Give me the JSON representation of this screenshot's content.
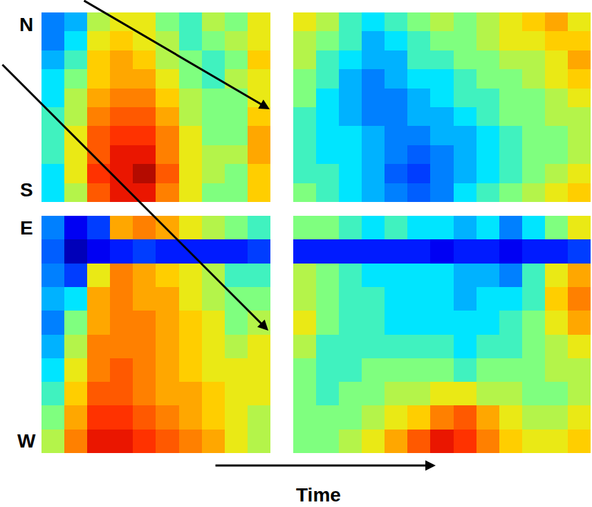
{
  "chart_data": [
    {
      "type": "heatmap",
      "top_label": "N",
      "bottom_label": "S",
      "tick_labels": false,
      "zlim": [
        0,
        1
      ],
      "z": [
        [
          0.3,
          0.35,
          0.55,
          0.6,
          0.6,
          0.5,
          0.45,
          0.55,
          0.5,
          0.6,
          null,
          0.6,
          0.55,
          0.45,
          0.4,
          0.45,
          0.5,
          0.55,
          0.5,
          0.55,
          0.6,
          0.65,
          0.7,
          0.6
        ],
        [
          0.3,
          0.4,
          0.6,
          0.65,
          0.6,
          0.55,
          0.45,
          0.5,
          0.55,
          0.6,
          null,
          0.55,
          0.5,
          0.45,
          0.35,
          0.4,
          0.45,
          0.5,
          0.5,
          0.55,
          0.6,
          0.6,
          0.65,
          0.65
        ],
        [
          0.35,
          0.45,
          0.65,
          0.7,
          0.65,
          0.55,
          0.5,
          0.45,
          0.5,
          0.65,
          null,
          0.55,
          0.45,
          0.4,
          0.35,
          0.35,
          0.45,
          0.45,
          0.5,
          0.5,
          0.55,
          0.55,
          0.6,
          0.7
        ],
        [
          0.4,
          0.5,
          0.65,
          0.7,
          0.7,
          0.6,
          0.5,
          0.45,
          0.55,
          0.6,
          null,
          0.5,
          0.45,
          0.35,
          0.3,
          0.35,
          0.4,
          0.4,
          0.45,
          0.5,
          0.5,
          0.55,
          0.6,
          0.65
        ],
        [
          0.4,
          0.55,
          0.7,
          0.75,
          0.75,
          0.65,
          0.55,
          0.5,
          0.5,
          0.6,
          null,
          0.5,
          0.4,
          0.35,
          0.3,
          0.3,
          0.35,
          0.4,
          0.45,
          0.45,
          0.5,
          0.5,
          0.55,
          0.6
        ],
        [
          0.45,
          0.55,
          0.75,
          0.8,
          0.8,
          0.7,
          0.55,
          0.5,
          0.5,
          0.65,
          null,
          0.45,
          0.4,
          0.35,
          0.3,
          0.3,
          0.35,
          0.35,
          0.4,
          0.45,
          0.5,
          0.5,
          0.55,
          0.55
        ],
        [
          0.45,
          0.6,
          0.8,
          0.85,
          0.85,
          0.75,
          0.6,
          0.5,
          0.5,
          0.7,
          null,
          0.45,
          0.4,
          0.4,
          0.35,
          0.3,
          0.3,
          0.35,
          0.35,
          0.4,
          0.45,
          0.5,
          0.5,
          0.55
        ],
        [
          0.45,
          0.6,
          0.8,
          0.9,
          0.9,
          0.75,
          0.6,
          0.55,
          0.55,
          0.7,
          null,
          0.45,
          0.4,
          0.4,
          0.35,
          0.3,
          0.25,
          0.3,
          0.35,
          0.4,
          0.45,
          0.5,
          0.5,
          0.55
        ],
        [
          0.4,
          0.6,
          0.85,
          0.9,
          0.95,
          0.8,
          0.6,
          0.55,
          0.5,
          0.65,
          null,
          0.45,
          0.45,
          0.4,
          0.35,
          0.25,
          0.2,
          0.3,
          0.35,
          0.4,
          0.45,
          0.5,
          0.55,
          0.6
        ],
        [
          0.4,
          0.55,
          0.8,
          0.9,
          0.9,
          0.75,
          0.6,
          0.5,
          0.5,
          0.65,
          null,
          0.5,
          0.45,
          0.4,
          0.35,
          0.3,
          0.25,
          0.3,
          0.4,
          0.45,
          0.5,
          0.55,
          0.6,
          0.65
        ]
      ]
    },
    {
      "type": "heatmap",
      "top_label": "E",
      "bottom_label": "W",
      "xlabel": "Time",
      "tick_labels": false,
      "zlim": [
        0,
        1
      ],
      "z": [
        [
          0.3,
          0.1,
          0.2,
          0.7,
          0.75,
          0.7,
          0.6,
          0.55,
          0.5,
          0.45,
          null,
          0.5,
          0.5,
          0.45,
          0.4,
          0.45,
          0.4,
          0.4,
          0.35,
          0.4,
          0.3,
          0.4,
          0.5,
          0.6
        ],
        [
          0.25,
          0.05,
          0.1,
          0.15,
          0.2,
          0.15,
          0.15,
          0.15,
          0.15,
          0.2,
          null,
          0.15,
          0.15,
          0.15,
          0.15,
          0.15,
          0.15,
          0.1,
          0.15,
          0.15,
          0.1,
          0.15,
          0.15,
          0.2
        ],
        [
          0.3,
          0.2,
          0.6,
          0.75,
          0.7,
          0.65,
          0.6,
          0.55,
          0.45,
          0.45,
          null,
          0.55,
          0.5,
          0.45,
          0.4,
          0.4,
          0.4,
          0.4,
          0.35,
          0.35,
          0.3,
          0.45,
          0.6,
          0.7
        ],
        [
          0.35,
          0.4,
          0.7,
          0.75,
          0.7,
          0.7,
          0.6,
          0.55,
          0.5,
          0.5,
          null,
          0.55,
          0.5,
          0.45,
          0.45,
          0.4,
          0.4,
          0.4,
          0.35,
          0.4,
          0.4,
          0.45,
          0.65,
          0.75
        ],
        [
          0.3,
          0.5,
          0.7,
          0.75,
          0.75,
          0.7,
          0.65,
          0.6,
          0.5,
          0.55,
          null,
          0.6,
          0.5,
          0.45,
          0.45,
          0.4,
          0.4,
          0.4,
          0.4,
          0.4,
          0.45,
          0.5,
          0.6,
          0.7
        ],
        [
          0.35,
          0.55,
          0.75,
          0.75,
          0.75,
          0.7,
          0.65,
          0.6,
          0.55,
          0.6,
          null,
          0.55,
          0.45,
          0.45,
          0.45,
          0.45,
          0.45,
          0.45,
          0.4,
          0.45,
          0.45,
          0.5,
          0.55,
          0.6
        ],
        [
          0.4,
          0.6,
          0.75,
          0.8,
          0.75,
          0.7,
          0.65,
          0.6,
          0.6,
          0.6,
          null,
          0.5,
          0.45,
          0.45,
          0.5,
          0.5,
          0.5,
          0.5,
          0.45,
          0.5,
          0.5,
          0.5,
          0.55,
          0.55
        ],
        [
          0.45,
          0.65,
          0.8,
          0.8,
          0.75,
          0.7,
          0.7,
          0.65,
          0.6,
          0.6,
          null,
          0.5,
          0.45,
          0.5,
          0.5,
          0.55,
          0.55,
          0.6,
          0.6,
          0.55,
          0.55,
          0.5,
          0.5,
          0.55
        ],
        [
          0.5,
          0.7,
          0.85,
          0.85,
          0.8,
          0.75,
          0.7,
          0.65,
          0.6,
          0.55,
          null,
          0.5,
          0.5,
          0.5,
          0.55,
          0.6,
          0.65,
          0.75,
          0.8,
          0.7,
          0.6,
          0.55,
          0.55,
          0.6
        ],
        [
          0.55,
          0.75,
          0.9,
          0.9,
          0.85,
          0.8,
          0.75,
          0.7,
          0.6,
          0.55,
          null,
          0.5,
          0.5,
          0.55,
          0.6,
          0.7,
          0.8,
          0.9,
          0.85,
          0.75,
          0.65,
          0.6,
          0.6,
          0.65
        ]
      ]
    }
  ]
}
